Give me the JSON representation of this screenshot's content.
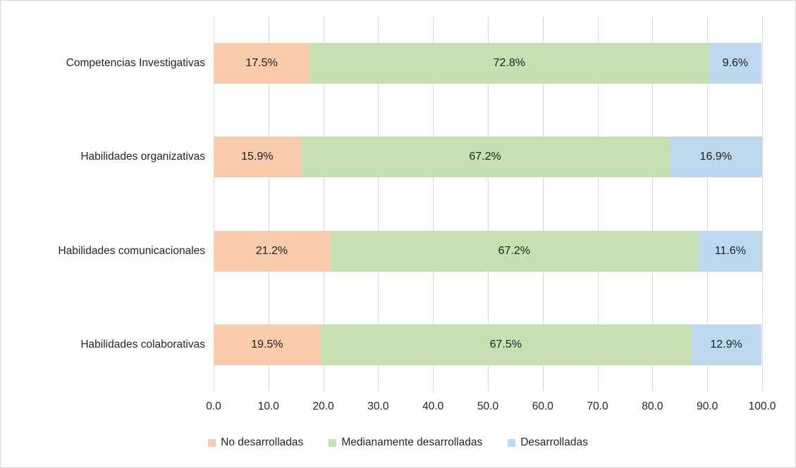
{
  "chart_data": {
    "type": "bar",
    "orientation": "horizontal",
    "stacked": true,
    "title": "",
    "categories": [
      "Competencias Investigativas",
      "Habilidades organizativas",
      "Habilidades comunicacionales",
      "Habilidades colaborativas"
    ],
    "series": [
      {
        "name": "No desarrolladas",
        "color": "#F8CBAD",
        "values": [
          17.5,
          15.9,
          21.2,
          19.5
        ],
        "value_labels": [
          "17.5%",
          "15.9%",
          "21.2%",
          "19.5%"
        ]
      },
      {
        "name": "Medianamente desarrolladas",
        "color": "#C6E0B4",
        "values": [
          72.8,
          67.2,
          67.2,
          67.5
        ],
        "value_labels": [
          "72.8%",
          "67.2%",
          "67.2%",
          "67.5%"
        ]
      },
      {
        "name": "Desarrolladas",
        "color": "#BDD7EE",
        "values": [
          9.6,
          16.9,
          11.6,
          12.9
        ],
        "value_labels": [
          "9.6%",
          "16.9%",
          "11.6%",
          "12.9%"
        ]
      }
    ],
    "xlim": [
      0,
      100
    ],
    "x_ticks": [
      "0.0",
      "10.0",
      "20.0",
      "30.0",
      "40.0",
      "50.0",
      "60.0",
      "70.0",
      "80.0",
      "90.0",
      "100.0"
    ],
    "grid": true,
    "legend_position": "bottom",
    "gridline_color": "#D9D9D9",
    "text_color": "#262626"
  }
}
